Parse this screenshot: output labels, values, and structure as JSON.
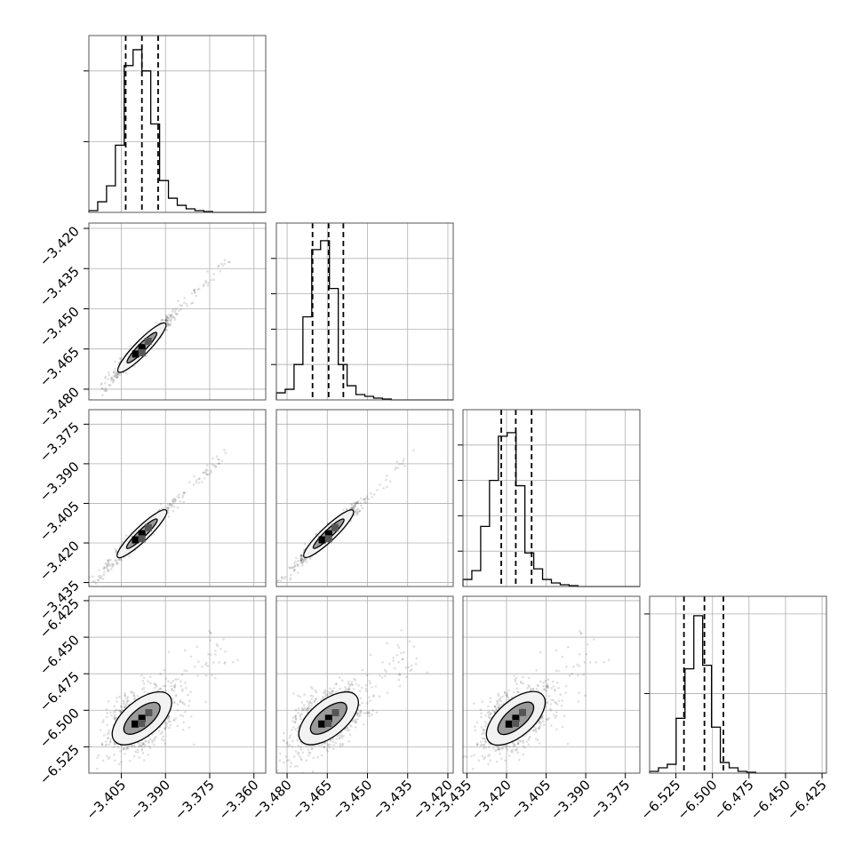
{
  "figure": {
    "type": "corner-plot",
    "parameters": 4
  },
  "chart_data": {
    "type": "corner",
    "n_params": 4,
    "params": [
      {
        "index": 0,
        "range": [
          -3.416,
          -3.356
        ],
        "ticks": [
          -3.405,
          -3.39,
          -3.375,
          -3.36
        ],
        "tick_labels": [
          "−3.405",
          "−3.390",
          "−3.375",
          "−3.360"
        ],
        "quantiles": [
          -3.4035,
          -3.398,
          -3.3925
        ],
        "hist_bin_edges": [
          -3.416,
          -3.413,
          -3.41,
          -3.407,
          -3.404,
          -3.401,
          -3.398,
          -3.395,
          -3.392,
          -3.389,
          -3.386,
          -3.383,
          -3.38,
          -3.377,
          -3.374,
          -3.371,
          -3.368,
          -3.365,
          -3.362,
          -3.359,
          -3.356
        ],
        "hist_values": [
          0.01,
          0.06,
          0.15,
          0.38,
          0.83,
          0.92,
          0.8,
          0.5,
          0.18,
          0.08,
          0.04,
          0.02,
          0.01,
          0.005,
          0,
          0,
          0,
          0,
          0,
          0
        ],
        "hist_yticks": [
          0.4,
          0.8
        ]
      },
      {
        "index": 1,
        "range": [
          -3.484,
          -3.418
        ],
        "ticks": [
          -3.48,
          -3.465,
          -3.45,
          -3.435,
          -3.42
        ],
        "tick_labels": [
          "−3.480",
          "−3.465",
          "−3.450",
          "−3.435",
          "−3.420"
        ],
        "quantiles": [
          -3.4705,
          -3.4645,
          -3.459
        ],
        "hist_bin_edges": [
          -3.484,
          -3.4807,
          -3.4774,
          -3.4741,
          -3.4708,
          -3.4675,
          -3.4642,
          -3.4609,
          -3.4576,
          -3.4543,
          -3.451,
          -3.4477,
          -3.4444,
          -3.4411,
          -3.4378,
          -3.4345,
          -3.4312,
          -3.4279,
          -3.4246,
          -3.4213,
          -3.418
        ],
        "hist_values": [
          0.04,
          0.06,
          0.2,
          0.47,
          0.85,
          0.9,
          0.63,
          0.2,
          0.08,
          0.03,
          0.02,
          0.01,
          0.005,
          0,
          0,
          0,
          0,
          0,
          0,
          0
        ],
        "hist_yticks": [
          0.2,
          0.4,
          0.6,
          0.8
        ]
      },
      {
        "index": 2,
        "range": [
          -3.4365,
          -3.3695
        ],
        "ticks": [
          -3.435,
          -3.42,
          -3.405,
          -3.39,
          -3.375
        ],
        "tick_labels": [
          "−3.435",
          "−3.420",
          "−3.405",
          "−3.390",
          "−3.375"
        ],
        "quantiles": [
          -3.422,
          -3.4165,
          -3.4105
        ],
        "hist_bin_edges": [
          -3.4365,
          -3.43315,
          -3.4298,
          -3.42645,
          -3.4231,
          -3.41975,
          -3.4164,
          -3.41305,
          -3.4097,
          -3.40635,
          -3.403,
          -3.39965,
          -3.3963,
          -3.39295,
          -3.3896,
          -3.38625,
          -3.3829,
          -3.37955,
          -3.3762,
          -3.37285,
          -3.3695
        ],
        "hist_values": [
          0.04,
          0.09,
          0.34,
          0.6,
          0.85,
          0.87,
          0.57,
          0.19,
          0.1,
          0.04,
          0.02,
          0.01,
          0.005,
          0,
          0,
          0,
          0,
          0,
          0,
          0
        ],
        "hist_yticks": [
          0.2,
          0.4,
          0.6,
          0.8
        ]
      },
      {
        "index": 3,
        "range": [
          -6.543,
          -6.422
        ],
        "ticks": [
          -6.525,
          -6.5,
          -6.475,
          -6.45,
          -6.425
        ],
        "tick_labels": [
          "−6.525",
          "−6.500",
          "−6.475",
          "−6.450",
          "−6.425"
        ],
        "quantiles": [
          -6.5195,
          -6.5055,
          -6.4925
        ],
        "hist_bin_edges": [
          -6.543,
          -6.53695,
          -6.5309,
          -6.52485,
          -6.5188,
          -6.51275,
          -6.5067,
          -6.50065,
          -6.4946,
          -6.48855,
          -6.4825,
          -6.47645,
          -6.4704,
          -6.46435,
          -6.4583,
          -6.45225,
          -6.4462,
          -6.44015,
          -6.4341,
          -6.42805,
          -6.422
        ],
        "hist_values": [
          0.01,
          0.03,
          0.05,
          0.31,
          0.59,
          0.89,
          0.61,
          0.26,
          0.06,
          0.03,
          0.01,
          0.005,
          0,
          0,
          0,
          0,
          0,
          0,
          0,
          0
        ],
        "hist_yticks": [
          0.45,
          0.9
        ]
      }
    ],
    "panels_2d": [
      {
        "row": 1,
        "col": 0,
        "corr": 0.995,
        "scatter_extent": [
          [
            -3.4165,
            -3.4815
          ],
          [
            -3.3625,
            -3.4205
          ]
        ]
      },
      {
        "row": 2,
        "col": 0,
        "corr": 0.995,
        "scatter_extent": [
          [
            -3.4165,
            -3.4355
          ],
          [
            -3.3625,
            -3.3775
          ]
        ]
      },
      {
        "row": 2,
        "col": 1,
        "corr": 0.995,
        "scatter_extent": [
          [
            -3.4835,
            -3.4355
          ],
          [
            -3.4235,
            -3.3775
          ]
        ]
      },
      {
        "row": 3,
        "col": 0,
        "corr": 0.9,
        "scatter_extent": [
          [
            -3.4165,
            -6.535
          ],
          [
            -3.3625,
            -6.445
          ]
        ]
      },
      {
        "row": 3,
        "col": 1,
        "corr": 0.9,
        "scatter_extent": [
          [
            -3.4835,
            -6.535
          ],
          [
            -3.4235,
            -6.445
          ]
        ]
      },
      {
        "row": 3,
        "col": 2,
        "corr": 0.9,
        "scatter_extent": [
          [
            -3.4355,
            -6.535
          ],
          [
            -3.3775,
            -6.445
          ]
        ]
      }
    ],
    "colors": {
      "line": "#000000",
      "frame": "#555555",
      "grid": "#b0b0b0",
      "contour_outer_fill": "#f2f2f2",
      "contour_inner_fill": "#9a9a9a",
      "density_dark": "#000000",
      "density_mid": "#555555"
    },
    "grid": true,
    "legend": "none"
  }
}
